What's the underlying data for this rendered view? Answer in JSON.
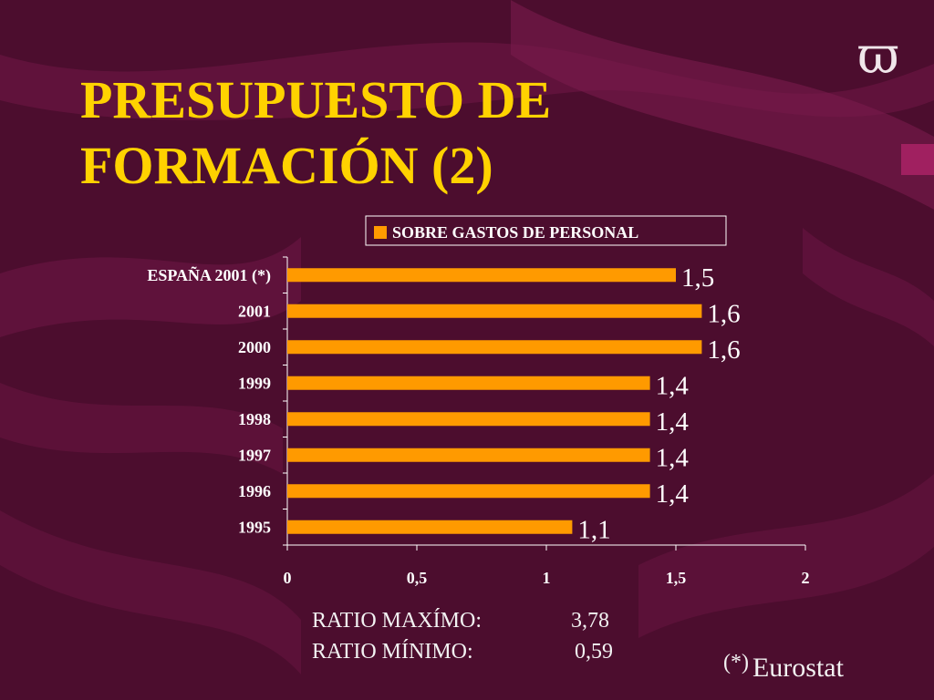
{
  "logo": "ϖ",
  "title": {
    "line1": "PRESUPUESTO DE",
    "line2": "FORMACIÓN (2)"
  },
  "colors": {
    "background": "#4c0d2e",
    "title": "#ffd200",
    "bar": "#ff9a00",
    "chart_text": "#ffffff"
  },
  "chart_data": {
    "type": "bar",
    "orientation": "horizontal",
    "categories": [
      "ESPAÑA 2001 (*)",
      "2001",
      "2000",
      "1999",
      "1998",
      "1997",
      "1996",
      "1995"
    ],
    "series": [
      {
        "name": "SOBRE GASTOS DE PERSONAL",
        "values": [
          1.5,
          1.6,
          1.6,
          1.4,
          1.4,
          1.4,
          1.4,
          1.1
        ],
        "labels": [
          "1,5",
          "1,6",
          "1,6",
          "1,4",
          "1,4",
          "1,4",
          "1,4",
          "1,1"
        ]
      }
    ],
    "xlim": [
      0,
      2
    ],
    "xticks": [
      0,
      0.5,
      1,
      1.5,
      2
    ],
    "xtick_labels": [
      "0",
      "0,5",
      "1",
      "1,5",
      "2"
    ],
    "legend_position": "top-right",
    "grid": false
  },
  "ratios": [
    {
      "label": "RATIO MAXÍMO:",
      "value": "3,78"
    },
    {
      "label": "RATIO MÍNIMO:",
      "value": "0,59"
    }
  ],
  "note": {
    "mark": "(*)",
    "source": "Eurostat"
  }
}
